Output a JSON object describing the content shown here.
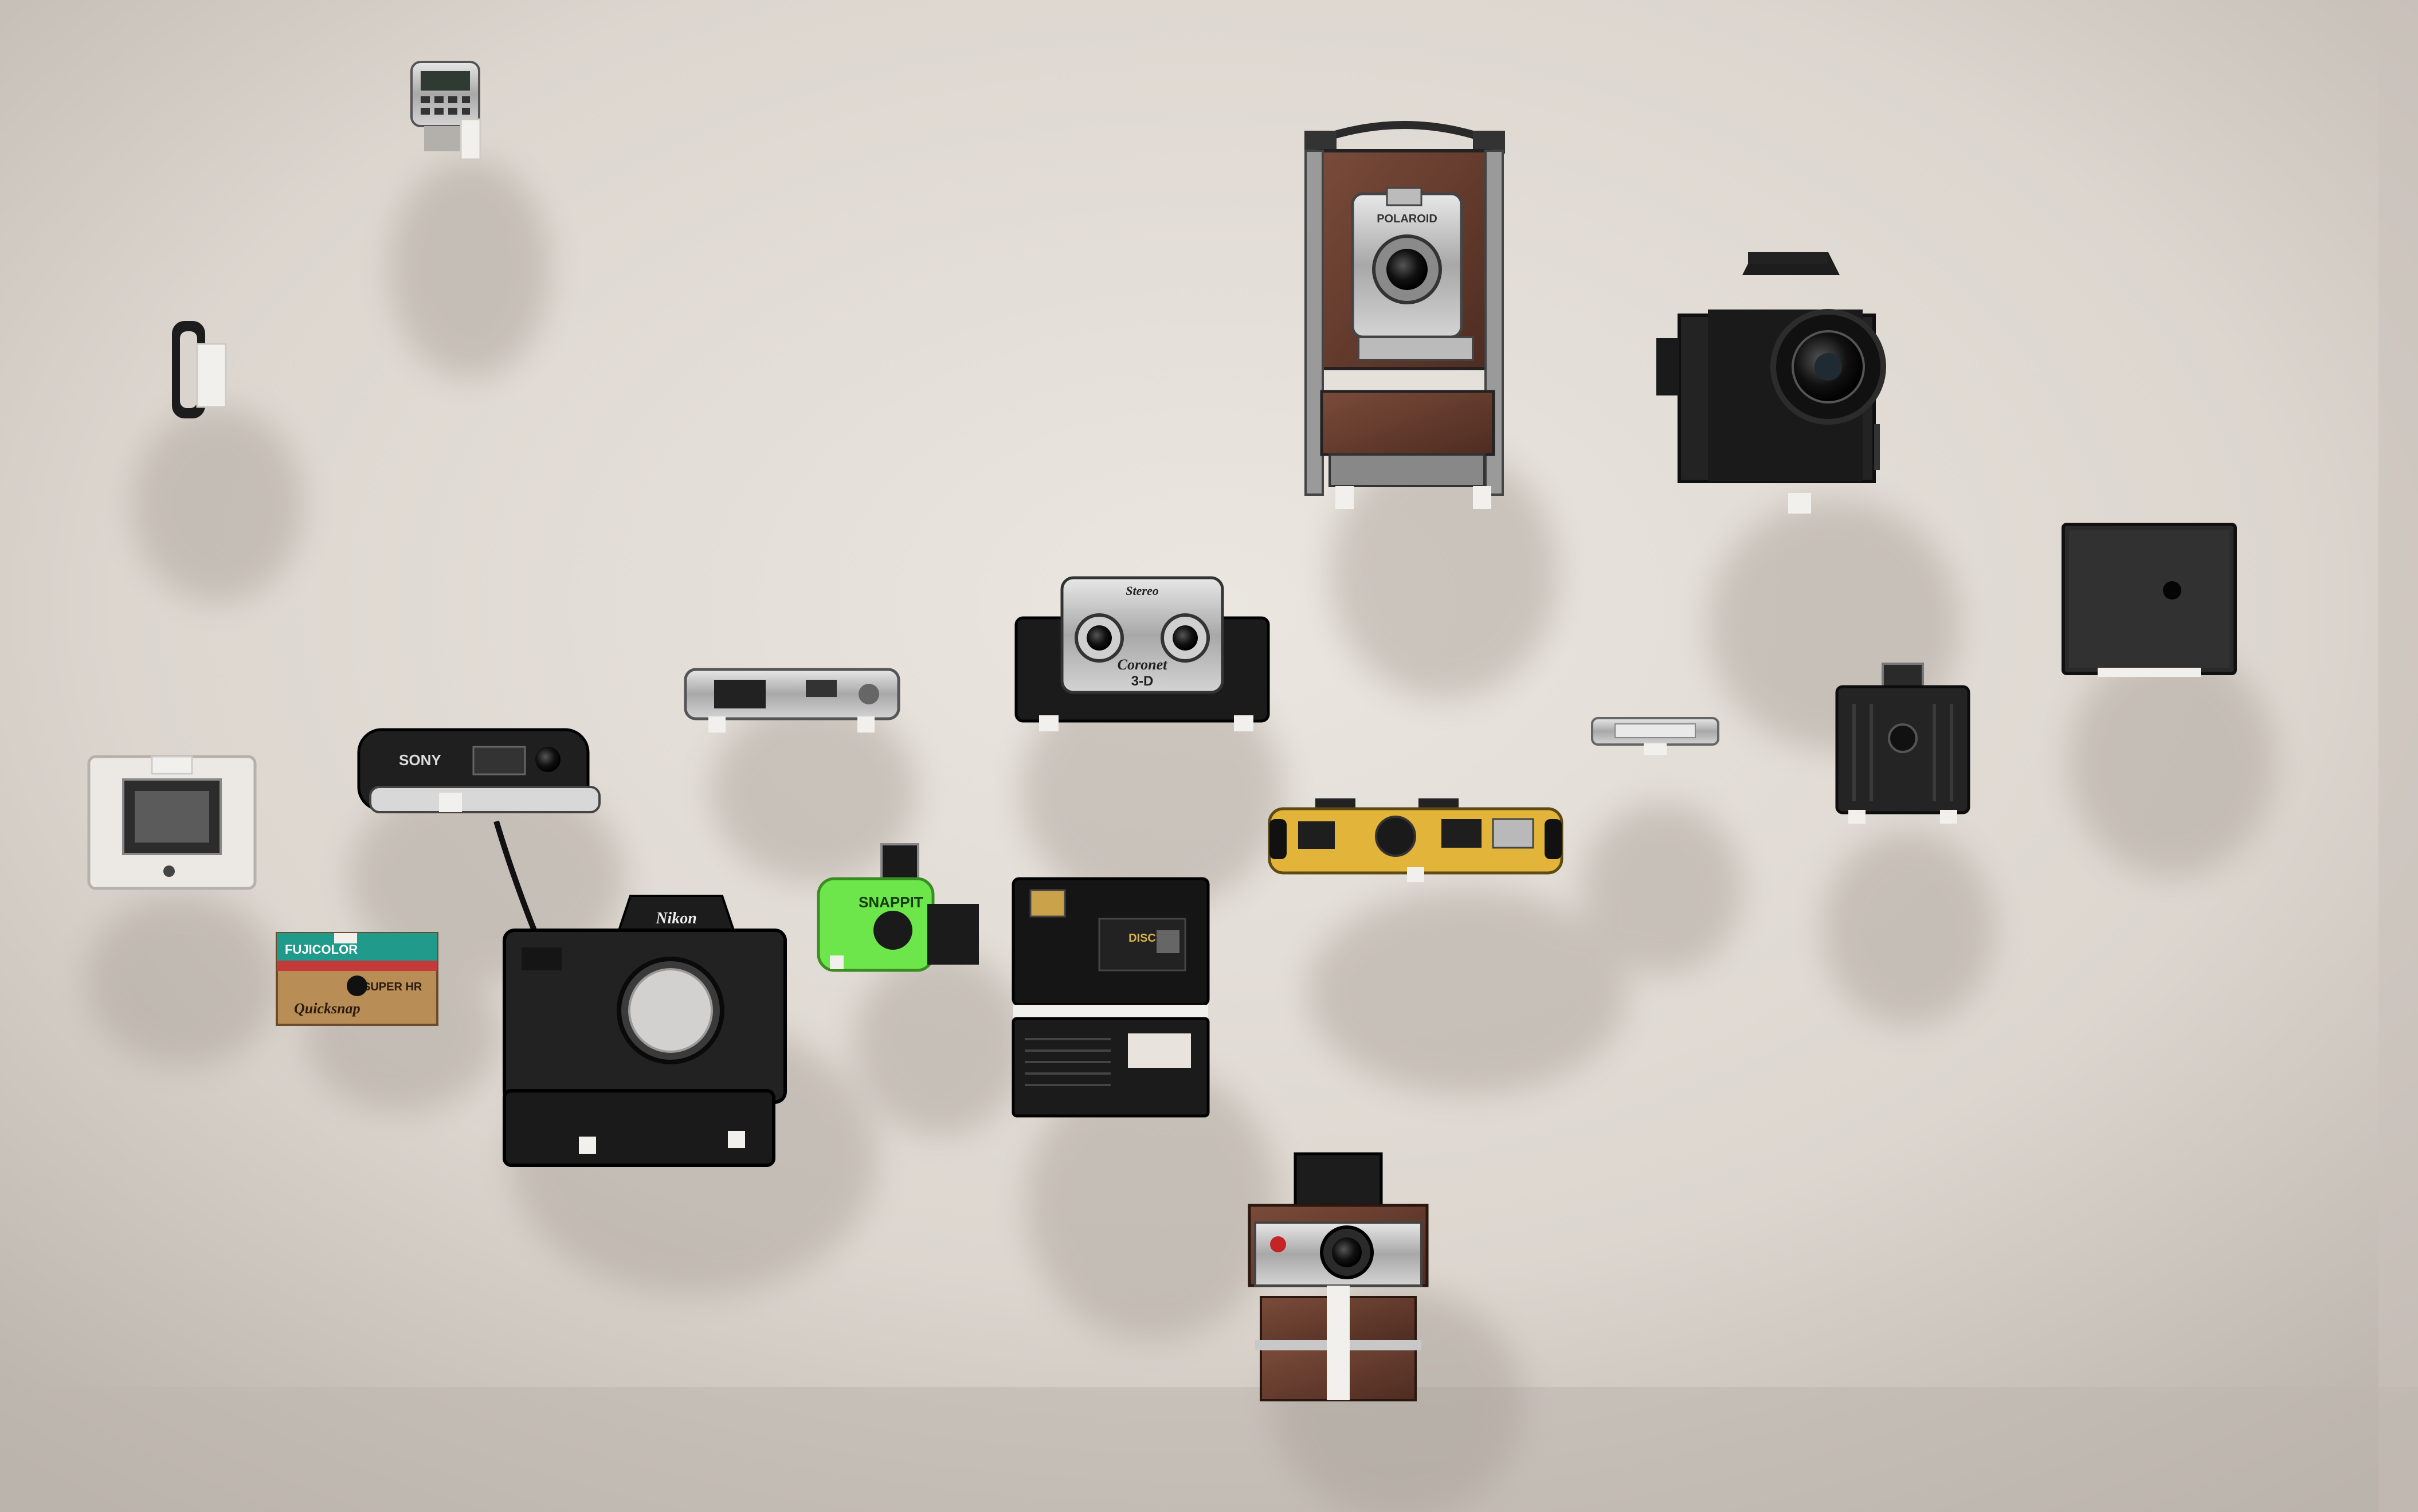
{
  "scene": {
    "background_colors": {
      "wall_light": "#e7e2dc",
      "wall_mid": "#d6d0c9",
      "wall_dark": "#c2bbb3",
      "bracket": "#f4f2ef"
    },
    "camera_labels": {
      "sony": "SONY",
      "nikon": "Nikon",
      "fujicolor": "FUJICOLOR",
      "quicksnap": "Quicksnap",
      "super": "SUPER HR",
      "snappit": "SNAPPIT",
      "coronet": "Coronet",
      "coronet_3d": "3-D",
      "stereo_brand": "Stereo",
      "polaroid": "POLAROID",
      "kodak_disc": "DISC"
    },
    "objects": [
      "calculator-watch",
      "wrist-band",
      "sony-mavica-camera",
      "open-back-camera-frame",
      "fujicolor-quicksnap",
      "nikon-slr-camera",
      "snappit-green-camera",
      "minox-spy-camera",
      "coronet-3d-stereo-camera",
      "kodak-disc-camera",
      "polaroid-folding-camera",
      "bellows-folding-camera",
      "tiny-slim-camera",
      "kodak-brownie-box-camera",
      "black-box-camera",
      "yellow-panoramic-camera",
      "polaroid-sx70-camera"
    ]
  }
}
